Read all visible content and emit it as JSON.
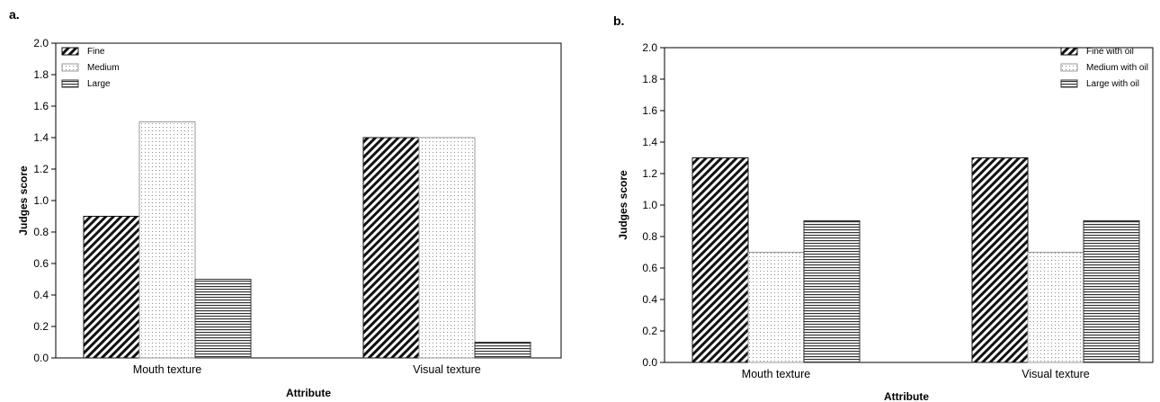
{
  "chart_data": [
    {
      "type": "bar",
      "panel_label": "a.",
      "categories": [
        "Mouth texture",
        "Visual texture"
      ],
      "series": [
        {
          "name": "Fine",
          "pattern": "diagonal",
          "values": [
            0.9,
            1.4
          ]
        },
        {
          "name": "Medium",
          "pattern": "dots",
          "values": [
            1.5,
            1.4
          ]
        },
        {
          "name": "Large",
          "pattern": "horizontal",
          "values": [
            0.5,
            0.1
          ]
        }
      ],
      "title": "",
      "xlabel": "Attribute",
      "ylabel": "Judges score",
      "ylim": [
        0,
        2.0
      ],
      "yticks": [
        "0.0",
        "0.2",
        "0.4",
        "0.6",
        "0.8",
        "1.0",
        "1.2",
        "1.4",
        "1.6",
        "1.8",
        "2.0"
      ],
      "grid": false,
      "legend": "top-left"
    },
    {
      "type": "bar",
      "panel_label": "b.",
      "categories": [
        "Mouth texture",
        "Visual texture"
      ],
      "series": [
        {
          "name": "Fine with oil",
          "pattern": "diagonal",
          "values": [
            1.3,
            1.3
          ]
        },
        {
          "name": "Medium with oil",
          "pattern": "dots",
          "values": [
            0.7,
            0.7
          ]
        },
        {
          "name": "Large with oil",
          "pattern": "horizontal",
          "values": [
            0.9,
            0.9
          ]
        }
      ],
      "title": "",
      "xlabel": "Attribute",
      "ylabel": "Judges score",
      "ylim": [
        0,
        2.0
      ],
      "yticks": [
        "0.0",
        "0.2",
        "0.4",
        "0.6",
        "0.8",
        "1.0",
        "1.2",
        "1.4",
        "1.6",
        "1.8",
        "2.0"
      ],
      "grid": false,
      "legend": "top-right"
    }
  ]
}
